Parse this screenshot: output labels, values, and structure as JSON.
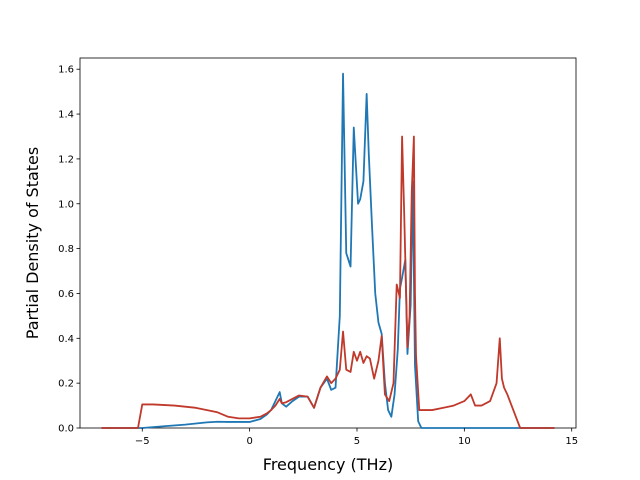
{
  "chart_data": {
    "type": "line",
    "title": "",
    "xlabel": "Frequency (THz)",
    "ylabel": "Partial Density of States",
    "xlim": [
      -7.9,
      15.2
    ],
    "ylim": [
      0.0,
      1.65
    ],
    "xticks": [
      -5,
      0,
      5,
      10,
      15
    ],
    "yticks": [
      0.0,
      0.2,
      0.4,
      0.6,
      0.8,
      1.0,
      1.2,
      1.4,
      1.6
    ],
    "xtick_labels": [
      "−5",
      "0",
      "5",
      "10",
      "15"
    ],
    "ytick_labels": [
      "0.0",
      "0.2",
      "0.4",
      "0.6",
      "0.8",
      "1.0",
      "1.2",
      "1.4",
      "1.6"
    ],
    "grid": false,
    "legend": "none",
    "series": [
      {
        "color": "#1f77b4",
        "x": [
          -6.9,
          -5.2,
          -5.0,
          -4.0,
          -3.0,
          -2.0,
          -1.5,
          -1.0,
          -0.5,
          0.0,
          0.5,
          0.8,
          1.0,
          1.2,
          1.4,
          1.5,
          1.7,
          2.0,
          2.3,
          2.7,
          3.0,
          3.3,
          3.6,
          3.8,
          4.0,
          4.2,
          4.35,
          4.5,
          4.7,
          4.85,
          4.95,
          5.05,
          5.15,
          5.3,
          5.45,
          5.55,
          5.7,
          5.85,
          6.0,
          6.15,
          6.3,
          6.45,
          6.6,
          6.75,
          6.9,
          7.0,
          7.1,
          7.25,
          7.35,
          7.5,
          7.6,
          7.7,
          7.85,
          8.0,
          9.0,
          10.0,
          11.0,
          11.7,
          12.0,
          12.3,
          12.6,
          13.0,
          14.2
        ],
        "y": [
          0.0,
          0.0,
          0.0,
          0.008,
          0.015,
          0.025,
          0.028,
          0.027,
          0.027,
          0.027,
          0.04,
          0.06,
          0.08,
          0.12,
          0.16,
          0.11,
          0.095,
          0.12,
          0.14,
          0.14,
          0.09,
          0.18,
          0.22,
          0.17,
          0.18,
          0.5,
          1.58,
          0.78,
          0.72,
          1.34,
          1.17,
          1.0,
          1.02,
          1.1,
          1.49,
          1.22,
          0.9,
          0.6,
          0.47,
          0.42,
          0.2,
          0.08,
          0.05,
          0.15,
          0.35,
          0.62,
          0.67,
          0.75,
          0.33,
          0.55,
          1.1,
          0.28,
          0.03,
          0.0,
          0.0,
          0.0,
          0.0,
          0.0,
          0.0,
          0.0,
          0.0,
          0.0,
          0.0
        ]
      },
      {
        "color": "#c0392b",
        "x": [
          -6.9,
          -5.2,
          -5.0,
          -4.5,
          -3.5,
          -2.5,
          -1.5,
          -1.0,
          -0.5,
          0.0,
          0.5,
          0.8,
          1.0,
          1.2,
          1.4,
          1.5,
          1.7,
          2.0,
          2.3,
          2.7,
          3.0,
          3.3,
          3.6,
          3.8,
          4.0,
          4.2,
          4.35,
          4.5,
          4.7,
          4.85,
          5.0,
          5.15,
          5.3,
          5.45,
          5.6,
          5.8,
          6.0,
          6.15,
          6.3,
          6.5,
          6.7,
          6.85,
          7.0,
          7.1,
          7.2,
          7.35,
          7.45,
          7.55,
          7.65,
          7.7,
          7.75,
          7.9,
          8.0,
          8.5,
          9.0,
          9.5,
          10.0,
          10.3,
          10.5,
          10.8,
          11.2,
          11.5,
          11.65,
          11.75,
          11.85,
          12.0,
          12.2,
          12.4,
          12.6,
          13.0,
          14.2
        ],
        "y": [
          0.0,
          0.0,
          0.105,
          0.105,
          0.1,
          0.09,
          0.07,
          0.05,
          0.043,
          0.043,
          0.05,
          0.065,
          0.08,
          0.1,
          0.13,
          0.11,
          0.115,
          0.13,
          0.145,
          0.14,
          0.09,
          0.18,
          0.23,
          0.2,
          0.22,
          0.26,
          0.43,
          0.26,
          0.25,
          0.34,
          0.3,
          0.34,
          0.29,
          0.32,
          0.31,
          0.22,
          0.3,
          0.41,
          0.15,
          0.12,
          0.2,
          0.64,
          0.58,
          1.3,
          0.95,
          0.36,
          0.5,
          1.05,
          1.3,
          0.6,
          0.32,
          0.08,
          0.08,
          0.08,
          0.09,
          0.1,
          0.12,
          0.15,
          0.1,
          0.1,
          0.12,
          0.2,
          0.4,
          0.22,
          0.18,
          0.15,
          0.1,
          0.05,
          0.0,
          0.0,
          0.0
        ]
      }
    ]
  }
}
